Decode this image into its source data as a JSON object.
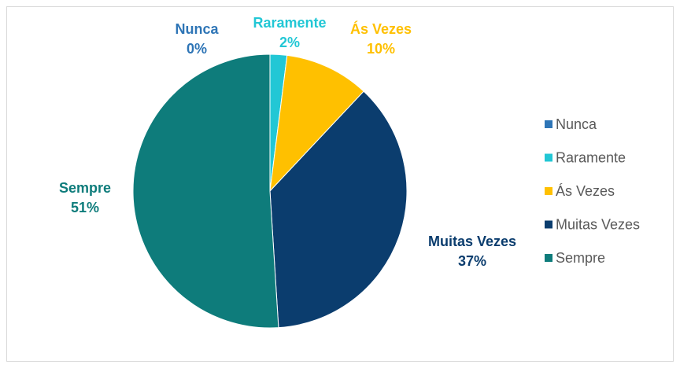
{
  "chart_data": {
    "type": "pie",
    "categories": [
      "Nunca",
      "Raramente",
      "Ás Vezes",
      "Muitas Vezes",
      "Sempre"
    ],
    "values": [
      0,
      2,
      10,
      37,
      51
    ],
    "value_labels": [
      "0%",
      "2%",
      "10%",
      "37%",
      "51%"
    ],
    "colors": [
      "#2E75B6",
      "#22C7D5",
      "#FFC000",
      "#0B3D6E",
      "#0E7C7B"
    ],
    "legend": "right"
  }
}
